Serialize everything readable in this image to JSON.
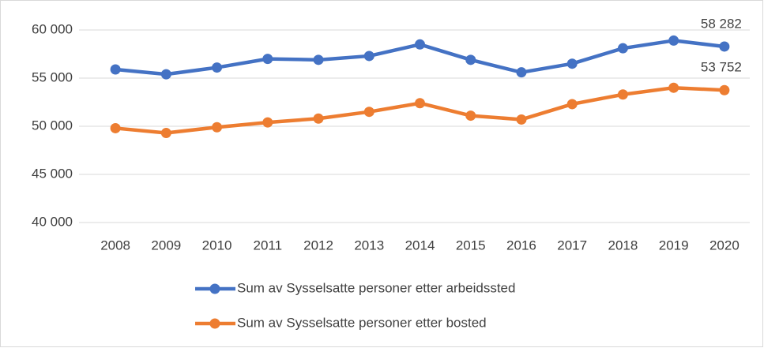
{
  "chart_data": {
    "type": "line",
    "categories": [
      "2008",
      "2009",
      "2010",
      "2011",
      "2012",
      "2013",
      "2014",
      "2015",
      "2016",
      "2017",
      "2018",
      "2019",
      "2020"
    ],
    "series": [
      {
        "name": "Sum av Sysselsatte personer etter arbeidssted",
        "color": "#4472c4",
        "values": [
          55900,
          55400,
          56100,
          57000,
          56900,
          57300,
          58500,
          56900,
          55600,
          56500,
          58100,
          58900,
          58282
        ],
        "value_labels": [
          null,
          null,
          null,
          null,
          null,
          null,
          null,
          null,
          null,
          null,
          null,
          null,
          "58 282"
        ]
      },
      {
        "name": "Sum av Sysselsatte personer etter bosted",
        "color": "#ed7d31",
        "values": [
          49800,
          49300,
          49900,
          50400,
          50800,
          51500,
          52400,
          51100,
          50700,
          52300,
          53300,
          54000,
          53752
        ],
        "value_labels": [
          null,
          null,
          null,
          null,
          null,
          null,
          null,
          null,
          null,
          null,
          null,
          null,
          "53 752"
        ]
      }
    ],
    "ylim": [
      40000,
      60000
    ],
    "yticks": [
      {
        "value": 40000,
        "label": "40 000"
      },
      {
        "value": 45000,
        "label": "45 000"
      },
      {
        "value": 50000,
        "label": "50 000"
      },
      {
        "value": 55000,
        "label": "55 000"
      },
      {
        "value": 60000,
        "label": "60 000"
      }
    ],
    "grid": true,
    "legend": "bottom"
  }
}
